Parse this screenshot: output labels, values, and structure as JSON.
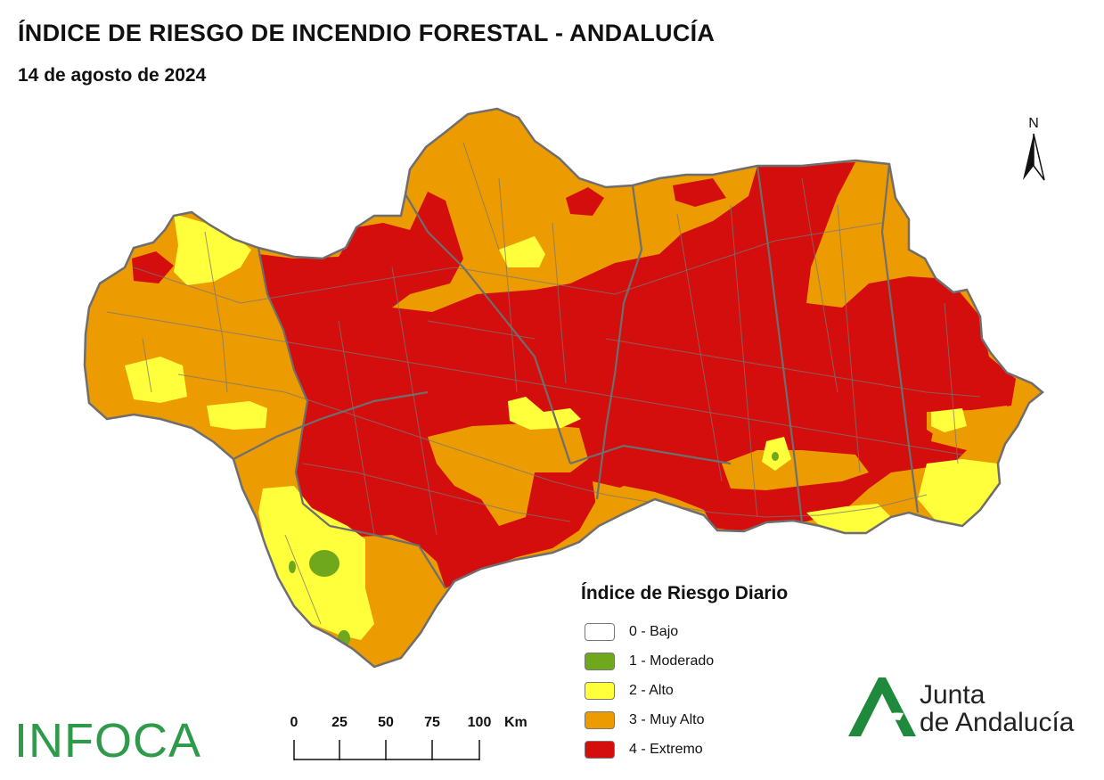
{
  "header": {
    "title": "ÍNDICE DE RIESGO DE INCENDIO FORESTAL - ANDALUCÍA",
    "date": "14 de agosto de 2024"
  },
  "north_arrow": {
    "label": "N"
  },
  "legend": {
    "title": "Índice de Riesgo Diario",
    "items": [
      {
        "label": "0 - Bajo",
        "color": "#ffffff"
      },
      {
        "label": "1 - Moderado",
        "color": "#6fa81d"
      },
      {
        "label": "2 - Alto",
        "color": "#ffff3b"
      },
      {
        "label": "3 - Muy Alto",
        "color": "#ec9b00"
      },
      {
        "label": "4 - Extremo",
        "color": "#d40d0d"
      }
    ]
  },
  "scale_bar": {
    "ticks": [
      "0",
      "25",
      "50",
      "75",
      "100"
    ],
    "unit": "Km"
  },
  "logos": {
    "infoca": "INFOCA",
    "junta_line1": "Junta",
    "junta_line2": "de Andalucía",
    "junta_color": "#1f8a3c"
  },
  "map": {
    "region": "Andalucía",
    "dominant_risk": "4 - Extremo",
    "border_color": "#6e6e6e"
  }
}
